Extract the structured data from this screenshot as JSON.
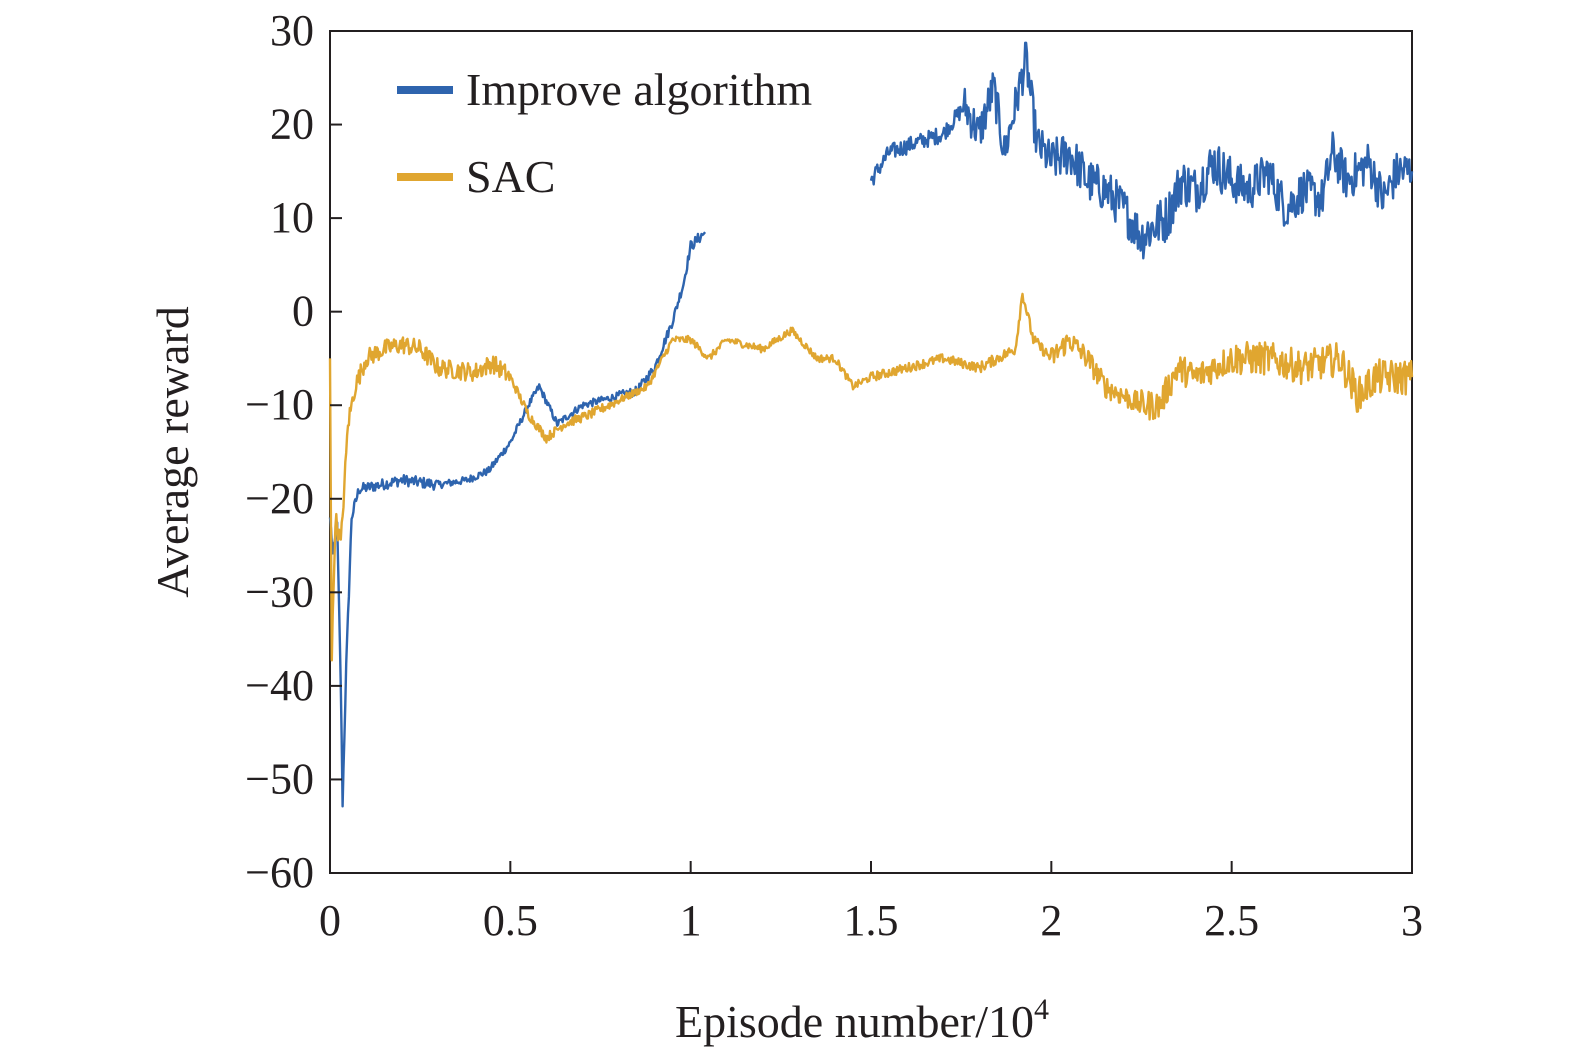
{
  "chart_data": {
    "type": "line",
    "title": "",
    "xlabel": "Episode number/10",
    "xlabel_superscript": "4",
    "ylabel": "Average reward",
    "xlim": [
      0,
      3
    ],
    "ylim": [
      -60,
      30
    ],
    "x_ticks": [
      0,
      0.5,
      1,
      1.5,
      2,
      2.5,
      3
    ],
    "x_tick_labels": [
      "0",
      "0.5",
      "1",
      "1.5",
      "2",
      "2.5",
      "3"
    ],
    "y_ticks": [
      30,
      20,
      10,
      0,
      -10,
      -20,
      -30,
      -40,
      -50,
      -60
    ],
    "y_tick_labels": [
      "30",
      "20",
      "10",
      "0",
      "−10",
      "−20",
      "−30",
      "−40",
      "−50",
      "−60"
    ],
    "grid": false,
    "legend_position": "top-left",
    "series": [
      {
        "name": "Improve algorithm",
        "color": "#2e64ae",
        "noise": [
          0.6,
          0.4,
          0.4,
          0.5,
          0.6,
          0.7,
          0.9,
          2.2,
          2.4,
          2.6,
          2.3,
          2.3
        ],
        "points": [
          [
            0,
            -22
          ],
          [
            0.008,
            -26
          ],
          [
            0.02,
            -23
          ],
          [
            0.03,
            -40
          ],
          [
            0.035,
            -52.5
          ],
          [
            0.045,
            -38
          ],
          [
            0.06,
            -22
          ],
          [
            0.08,
            -19
          ],
          [
            0.2,
            -18
          ],
          [
            0.3,
            -18.5
          ],
          [
            0.38,
            -18
          ],
          [
            0.44,
            -17
          ],
          [
            0.5,
            -14
          ],
          [
            0.55,
            -10
          ],
          [
            0.58,
            -8
          ],
          [
            0.63,
            -12
          ],
          [
            0.7,
            -10
          ],
          [
            0.8,
            -9
          ],
          [
            0.85,
            -8.5
          ],
          [
            0.9,
            -6
          ],
          [
            0.95,
            -1
          ],
          [
            0.98,
            3
          ],
          [
            1.0,
            7
          ],
          [
            1.04,
            8.5
          ],
          null,
          [
            1.5,
            14
          ],
          [
            1.55,
            17
          ],
          [
            1.62,
            18
          ],
          [
            1.7,
            19
          ],
          [
            1.76,
            22
          ],
          [
            1.8,
            19
          ],
          [
            1.84,
            24
          ],
          [
            1.87,
            17
          ],
          [
            1.9,
            22
          ],
          [
            1.93,
            27
          ],
          [
            1.96,
            18
          ],
          [
            2.0,
            16
          ],
          [
            2.05,
            17
          ],
          [
            2.1,
            14
          ],
          [
            2.15,
            13
          ],
          [
            2.2,
            11
          ],
          [
            2.25,
            8
          ],
          [
            2.28,
            9
          ],
          [
            2.32,
            10
          ],
          [
            2.36,
            14
          ],
          [
            2.4,
            13
          ],
          [
            2.45,
            16
          ],
          [
            2.5,
            14
          ],
          [
            2.55,
            13
          ],
          [
            2.6,
            15
          ],
          [
            2.65,
            11
          ],
          [
            2.7,
            13
          ],
          [
            2.75,
            12
          ],
          [
            2.78,
            17
          ],
          [
            2.82,
            14
          ],
          [
            2.88,
            16
          ],
          [
            2.92,
            12
          ],
          [
            2.96,
            15
          ],
          [
            3.0,
            15
          ]
        ]
      },
      {
        "name": "SAC",
        "color": "#e0a630",
        "noise": [
          1.0,
          1.0,
          0.5,
          0.4,
          0.4,
          0.4,
          0.5,
          0.6,
          1.2,
          1.6,
          1.8,
          1.9,
          1.9,
          1.8,
          1.8
        ],
        "points": [
          [
            0,
            -5
          ],
          [
            0.005,
            -37
          ],
          [
            0.015,
            -22
          ],
          [
            0.03,
            -25
          ],
          [
            0.05,
            -12
          ],
          [
            0.07,
            -8
          ],
          [
            0.1,
            -5
          ],
          [
            0.15,
            -4
          ],
          [
            0.2,
            -3.5
          ],
          [
            0.25,
            -4
          ],
          [
            0.3,
            -6
          ],
          [
            0.4,
            -6.5
          ],
          [
            0.45,
            -5.5
          ],
          [
            0.5,
            -7
          ],
          [
            0.55,
            -11
          ],
          [
            0.6,
            -13.5
          ],
          [
            0.65,
            -12
          ],
          [
            0.72,
            -11
          ],
          [
            0.8,
            -9.5
          ],
          [
            0.88,
            -8
          ],
          [
            0.95,
            -3
          ],
          [
            1.0,
            -3
          ],
          [
            1.05,
            -5
          ],
          [
            1.1,
            -3
          ],
          [
            1.2,
            -4
          ],
          [
            1.28,
            -2
          ],
          [
            1.35,
            -5
          ],
          [
            1.4,
            -5
          ],
          [
            1.45,
            -8
          ],
          [
            1.5,
            -7
          ],
          [
            1.6,
            -6
          ],
          [
            1.7,
            -5
          ],
          [
            1.8,
            -6
          ],
          [
            1.85,
            -5
          ],
          [
            1.9,
            -4
          ],
          [
            1.92,
            2
          ],
          [
            1.95,
            -3
          ],
          [
            2.0,
            -5
          ],
          [
            2.05,
            -3
          ],
          [
            2.1,
            -5
          ],
          [
            2.15,
            -8
          ],
          [
            2.2,
            -9
          ],
          [
            2.25,
            -10
          ],
          [
            2.3,
            -10
          ],
          [
            2.35,
            -6
          ],
          [
            2.4,
            -7
          ],
          [
            2.5,
            -5
          ],
          [
            2.6,
            -5
          ],
          [
            2.7,
            -6
          ],
          [
            2.8,
            -5
          ],
          [
            2.85,
            -9
          ],
          [
            2.9,
            -7
          ],
          [
            2.95,
            -7
          ],
          [
            3.0,
            -7
          ]
        ]
      }
    ]
  }
}
